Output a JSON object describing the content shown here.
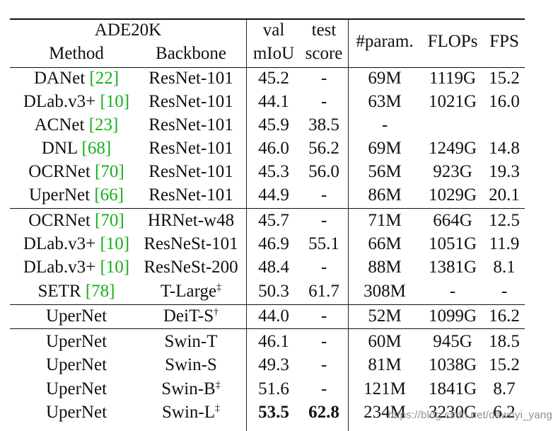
{
  "table": {
    "header": {
      "dataset": "ADE20K",
      "method": "Method",
      "backbone": "Backbone",
      "val_top": "val",
      "val_bottom": "mIoU",
      "test_top": "test",
      "test_bottom": "score",
      "param": "#param.",
      "flops": "FLOPs",
      "fps": "FPS"
    },
    "rows": [
      {
        "method": "DANet ",
        "ref": "[22]",
        "backbone": "ResNet-101",
        "dagger": "",
        "val": "45.2",
        "test": "-",
        "param": "69M",
        "flops": "1119G",
        "fps": "15.2"
      },
      {
        "method": "DLab.v3+ ",
        "ref": "[10]",
        "backbone": "ResNet-101",
        "dagger": "",
        "val": "44.1",
        "test": "-",
        "param": "63M",
        "flops": "1021G",
        "fps": "16.0"
      },
      {
        "method": "ACNet ",
        "ref": "[23]",
        "backbone": "ResNet-101",
        "dagger": "",
        "val": "45.9",
        "test": "38.5",
        "param": "-",
        "flops": "",
        "fps": ""
      },
      {
        "method": "DNL ",
        "ref": "[68]",
        "backbone": "ResNet-101",
        "dagger": "",
        "val": "46.0",
        "test": "56.2",
        "param": "69M",
        "flops": "1249G",
        "fps": "14.8"
      },
      {
        "method": "OCRNet ",
        "ref": "[70]",
        "backbone": "ResNet-101",
        "dagger": "",
        "val": "45.3",
        "test": "56.0",
        "param": "56M",
        "flops": "923G",
        "fps": "19.3"
      },
      {
        "method": "UperNet ",
        "ref": "[66]",
        "backbone": "ResNet-101",
        "dagger": "",
        "val": "44.9",
        "test": "-",
        "param": "86M",
        "flops": "1029G",
        "fps": "20.1"
      },
      {
        "method": "OCRNet ",
        "ref": "[70]",
        "backbone": "HRNet-w48",
        "dagger": "",
        "val": "45.7",
        "test": "-",
        "param": "71M",
        "flops": "664G",
        "fps": "12.5"
      },
      {
        "method": "DLab.v3+ ",
        "ref": "[10]",
        "backbone": "ResNeSt-101",
        "dagger": "",
        "val": "46.9",
        "test": "55.1",
        "param": "66M",
        "flops": "1051G",
        "fps": "11.9"
      },
      {
        "method": "DLab.v3+ ",
        "ref": "[10]",
        "backbone": "ResNeSt-200",
        "dagger": "",
        "val": "48.4",
        "test": "-",
        "param": "88M",
        "flops": "1381G",
        "fps": "8.1"
      },
      {
        "method": "SETR ",
        "ref": "[78]",
        "backbone": "T-Large",
        "dagger": "‡",
        "val": "50.3",
        "test": "61.7",
        "param": "308M",
        "flops": "-",
        "fps": "-"
      },
      {
        "method": "UperNet",
        "ref": "",
        "backbone": "DeiT-S",
        "dagger": "†",
        "val": "44.0",
        "test": "-",
        "param": "52M",
        "flops": "1099G",
        "fps": "16.2"
      },
      {
        "method": "UperNet",
        "ref": "",
        "backbone": "Swin-T",
        "dagger": "",
        "val": "46.1",
        "test": "-",
        "param": "60M",
        "flops": "945G",
        "fps": "18.5"
      },
      {
        "method": "UperNet",
        "ref": "",
        "backbone": "Swin-S",
        "dagger": "",
        "val": "49.3",
        "test": "-",
        "param": "81M",
        "flops": "1038G",
        "fps": "15.2"
      },
      {
        "method": "UperNet",
        "ref": "",
        "backbone": "Swin-B",
        "dagger": "‡",
        "val": "51.6",
        "test": "-",
        "param": "121M",
        "flops": "1841G",
        "fps": "8.7"
      },
      {
        "method": "UperNet",
        "ref": "",
        "backbone": "Swin-L",
        "dagger": "‡",
        "val": "53.5",
        "test": "62.8",
        "param": "234M",
        "flops": "3230G",
        "fps": "6.2",
        "bold_val": true,
        "bold_test": true
      }
    ]
  },
  "watermark": "https://blog.csdn.net/dawnyi_yang",
  "colors": {
    "reference": "#16b016",
    "rule": "#111111"
  }
}
